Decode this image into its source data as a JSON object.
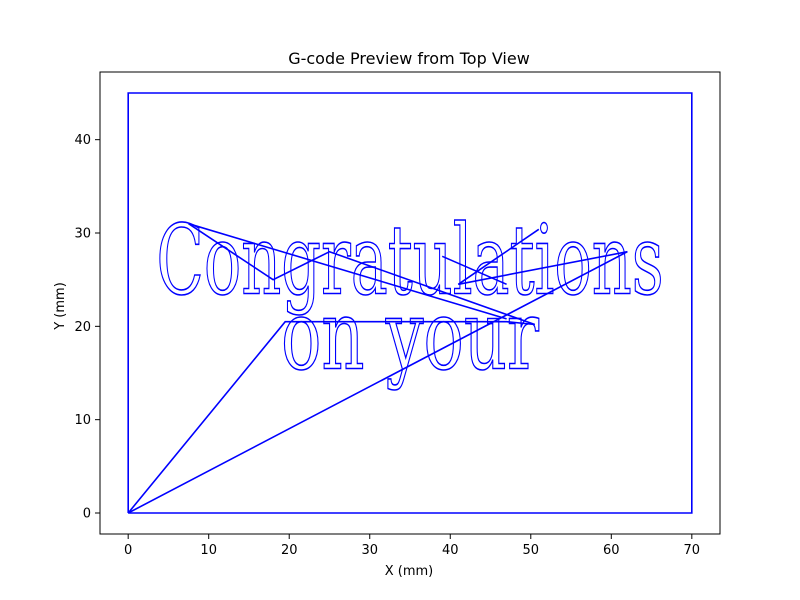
{
  "chart_data": {
    "type": "line",
    "title": "G-code Preview from Top View",
    "xlabel": "X (mm)",
    "ylabel": "Y (mm)",
    "xlim": [
      -3.5,
      73.5
    ],
    "ylim": [
      -2.25,
      47.25
    ],
    "xticks": [
      0,
      10,
      20,
      30,
      40,
      50,
      60,
      70
    ],
    "yticks": [
      0,
      10,
      20,
      30,
      40
    ],
    "grid": false,
    "line_color": "#0000ff",
    "series": [
      {
        "kind": "border",
        "x": [
          0,
          70,
          70,
          0,
          0
        ],
        "y": [
          0,
          0,
          45,
          45,
          0
        ]
      },
      {
        "kind": "travel",
        "x": [
          0,
          19.5,
          47,
          50.5
        ],
        "y": [
          0,
          20.5,
          20.5,
          20.2
        ]
      },
      {
        "kind": "travel",
        "x": [
          0,
          62,
          41,
          51
        ],
        "y": [
          0,
          28,
          24.5,
          30.4
        ]
      },
      {
        "kind": "travel",
        "x": [
          7.5,
          18,
          25,
          50.5
        ],
        "y": [
          31,
          25,
          28,
          20.2
        ]
      },
      {
        "kind": "travel",
        "x": [
          7.5,
          47
        ],
        "y": [
          31,
          20.8
        ]
      },
      {
        "kind": "travel",
        "x": [
          39,
          47
        ],
        "y": [
          27.5,
          24.5
        ]
      }
    ],
    "text_paths": [
      {
        "text": "Congratulations",
        "x": 3.5,
        "y": 23.5,
        "width": 63
      },
      {
        "text": "on your",
        "x": 19,
        "y": 15.5,
        "width": 32
      }
    ]
  }
}
